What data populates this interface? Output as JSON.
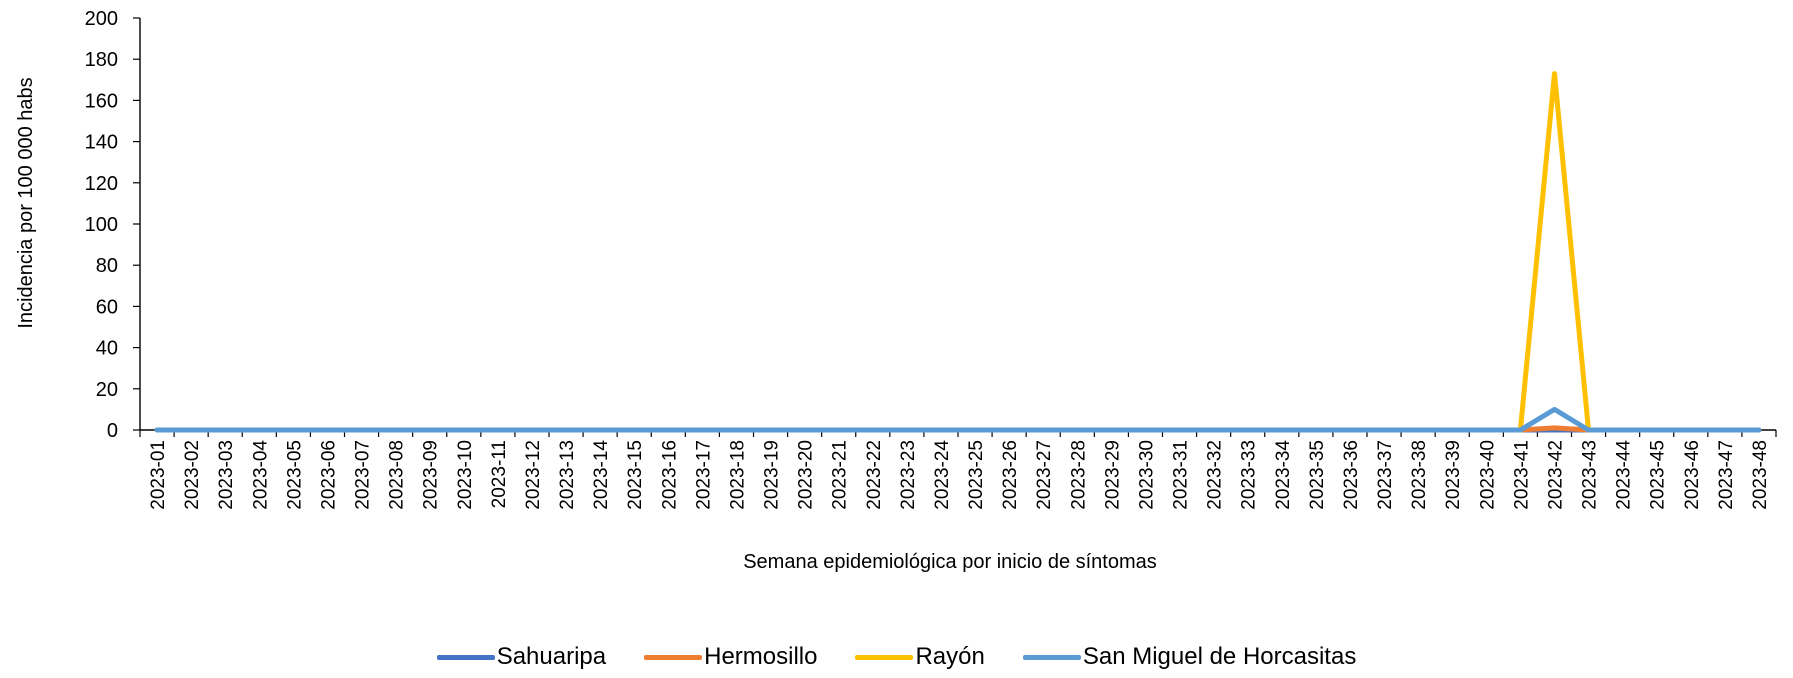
{
  "chart_data": {
    "type": "line",
    "title": "",
    "xlabel": "Semana epidemiológica por inicio de síntomas",
    "ylabel": "Incidencia por 100 000 habs",
    "ylim": [
      0,
      200
    ],
    "yticks": [
      "0",
      "20",
      "40",
      "60",
      "80",
      "100",
      "120",
      "140",
      "160",
      "180",
      "200"
    ],
    "grid": false,
    "legend_position": "bottom",
    "categories": [
      "2023-01",
      "2023-02",
      "2023-03",
      "2023-04",
      "2023-05",
      "2023-06",
      "2023-07",
      "2023-08",
      "2023-09",
      "2023-10",
      "2023-11",
      "2023-12",
      "2023-13",
      "2023-14",
      "2023-15",
      "2023-16",
      "2023-17",
      "2023-18",
      "2023-19",
      "2023-20",
      "2023-21",
      "2023-22",
      "2023-23",
      "2023-24",
      "2023-25",
      "2023-26",
      "2023-27",
      "2023-28",
      "2023-29",
      "2023-30",
      "2023-31",
      "2023-32",
      "2023-33",
      "2023-34",
      "2023-35",
      "2023-36",
      "2023-37",
      "2023-38",
      "2023-39",
      "2023-40",
      "2023-41",
      "2023-42",
      "2023-43",
      "2023-44",
      "2023-45",
      "2023-46",
      "2023-47",
      "2023-48"
    ],
    "series": [
      {
        "name": "Sahuaripa",
        "color": "#4472C4",
        "values": [
          0,
          0,
          0,
          0,
          0,
          0,
          0,
          0,
          0,
          0,
          0,
          0,
          0,
          0,
          0,
          0,
          0,
          0,
          0,
          0,
          0,
          0,
          0,
          0,
          0,
          0,
          0,
          0,
          0,
          0,
          0,
          0,
          0,
          0,
          0,
          0,
          0,
          0,
          0,
          0,
          0,
          0,
          0,
          0,
          0,
          0,
          0,
          0
        ]
      },
      {
        "name": "Hermosillo",
        "color": "#ED7D31",
        "values": [
          0,
          0,
          0,
          0,
          0,
          0,
          0,
          0,
          0,
          0,
          0,
          0,
          0,
          0,
          0,
          0,
          0,
          0,
          0,
          0,
          0,
          0,
          0,
          0,
          0,
          0,
          0,
          0,
          0,
          0,
          0,
          0,
          0,
          0,
          0,
          0,
          0,
          0,
          0,
          0,
          0,
          1,
          0,
          0,
          0,
          0,
          0,
          0
        ]
      },
      {
        "name": "Rayón",
        "color": "#FFC000",
        "values": [
          0,
          0,
          0,
          0,
          0,
          0,
          0,
          0,
          0,
          0,
          0,
          0,
          0,
          0,
          0,
          0,
          0,
          0,
          0,
          0,
          0,
          0,
          0,
          0,
          0,
          0,
          0,
          0,
          0,
          0,
          0,
          0,
          0,
          0,
          0,
          0,
          0,
          0,
          0,
          0,
          0,
          173,
          0,
          0,
          0,
          0,
          0,
          0
        ]
      },
      {
        "name": "San Miguel de Horcasitas",
        "color": "#5B9BD5",
        "values": [
          0,
          0,
          0,
          0,
          0,
          0,
          0,
          0,
          0,
          0,
          0,
          0,
          0,
          0,
          0,
          0,
          0,
          0,
          0,
          0,
          0,
          0,
          0,
          0,
          0,
          0,
          0,
          0,
          0,
          0,
          0,
          0,
          0,
          0,
          0,
          0,
          0,
          0,
          0,
          0,
          0,
          10,
          0,
          0,
          0,
          0,
          0,
          0
        ]
      }
    ]
  }
}
